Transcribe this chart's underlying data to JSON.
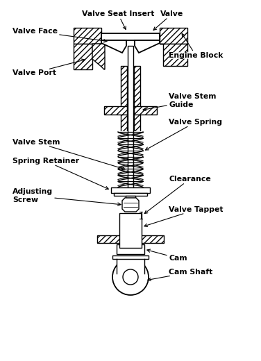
{
  "background_color": "#ffffff",
  "line_color": "#000000",
  "labels": {
    "valve_seat_insert": "Valve Seat Insert",
    "valve": "Valve",
    "valve_face": "Valve Face",
    "engine_block": "Engine Block",
    "valve_port": "Valve Port",
    "valve_stem_guide": "Valve Stem\nGuide",
    "valve_spring": "Valve Spring",
    "valve_stem": "Valve Stem",
    "spring_retainer": "Spring Retainer",
    "clearance": "Clearance",
    "adjusting_screw": "Adjusting\nScrew",
    "valve_tappet": "Valve Tappet",
    "cam": "Cam",
    "cam_shaft": "Cam Shaft"
  },
  "figsize": [
    3.76,
    5.2
  ],
  "dpi": 100
}
